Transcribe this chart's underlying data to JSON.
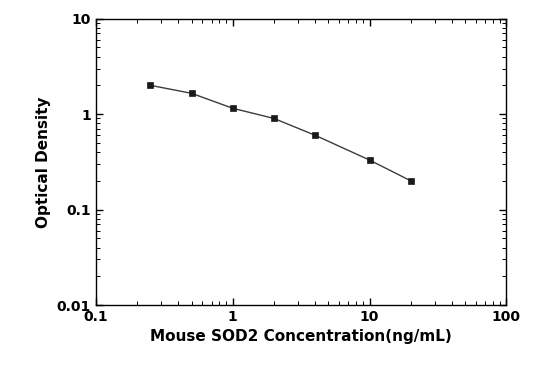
{
  "x": [
    0.25,
    0.5,
    1.0,
    2.0,
    4.0,
    10.0,
    20.0
  ],
  "y": [
    2.0,
    1.65,
    1.15,
    0.9,
    0.6,
    0.33,
    0.2
  ],
  "xlabel": "Mouse SOD2 Concentration(ng/mL)",
  "ylabel": "Optical Density",
  "xlim": [
    0.1,
    100
  ],
  "ylim": [
    0.01,
    10
  ],
  "line_color": "#3c3c3c",
  "marker": "s",
  "marker_color": "#1a1a1a",
  "marker_size": 5,
  "line_width": 1.0,
  "background_color": "#ffffff",
  "xticks": [
    0.1,
    1,
    10,
    100
  ],
  "yticks": [
    0.01,
    0.1,
    1,
    10
  ],
  "xlabel_fontsize": 11,
  "ylabel_fontsize": 11,
  "tick_labelsize": 10
}
